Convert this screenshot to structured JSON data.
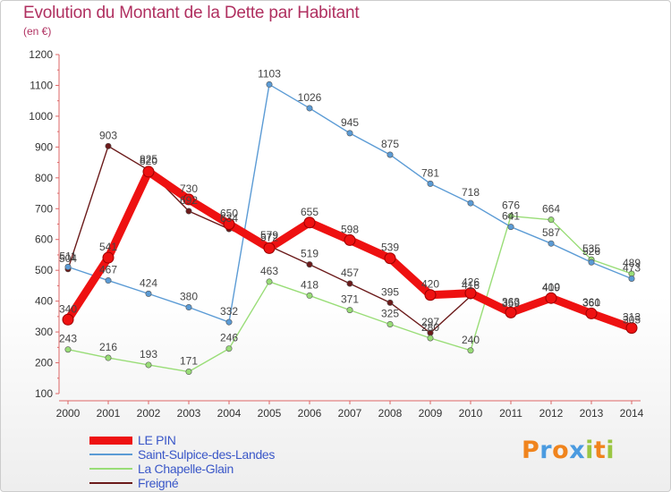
{
  "header": {
    "title": "Evolution du Montant de la Dette par Habitant",
    "unit": "(en €)"
  },
  "logo": {
    "letters": [
      {
        "ch": "P",
        "color": "#f0841d"
      },
      {
        "ch": "r",
        "color": "#4b9be0"
      },
      {
        "ch": "o",
        "color": "#f0841d"
      },
      {
        "ch": "x",
        "color": "#4b9be0"
      },
      {
        "ch": "i",
        "color": "#9ac642"
      },
      {
        "ch": "t",
        "color": "#f0841d"
      },
      {
        "ch": "i",
        "color": "#9ac642"
      }
    ]
  },
  "chart_data": {
    "type": "line",
    "title": "Evolution du Montant de la Dette par Habitant",
    "ylabel": "(en €)",
    "xlabel": "",
    "x": [
      "2000",
      "2001",
      "2002",
      "2003",
      "2004",
      "2005",
      "2006",
      "2007",
      "2008",
      "2009",
      "2010",
      "2011",
      "2012",
      "2013",
      "2014"
    ],
    "ylim": [
      100,
      1200
    ],
    "yticks": [
      100,
      200,
      300,
      400,
      500,
      600,
      700,
      800,
      900,
      1000,
      1100,
      1200
    ],
    "grid": false,
    "legend_position": "bottom-left",
    "series": [
      {
        "name": "Freigné",
        "color": "#6b1a1a",
        "values": [
          504,
          903,
          825,
          692,
          634,
          579,
          519,
          457,
          395,
          297,
          416,
          359,
          409,
          361,
          305
        ]
      },
      {
        "name": "La Chapelle-Glain",
        "color": "#99dd77",
        "values": [
          243,
          216,
          193,
          171,
          246,
          463,
          418,
          371,
          325,
          280,
          240,
          676,
          664,
          535,
          489
        ]
      },
      {
        "name": "Saint-Sulpice-des-Landes",
        "color": "#5b9bd5",
        "values": [
          511,
          467,
          424,
          380,
          332,
          1103,
          1026,
          945,
          875,
          781,
          718,
          641,
          587,
          526,
          473
        ]
      },
      {
        "name": "LE PIN",
        "color": "#ee1111",
        "values": [
          340,
          541,
          820,
          730,
          650,
          572,
          655,
          598,
          539,
          420,
          426,
          363,
          410,
          360,
          313
        ]
      }
    ]
  }
}
